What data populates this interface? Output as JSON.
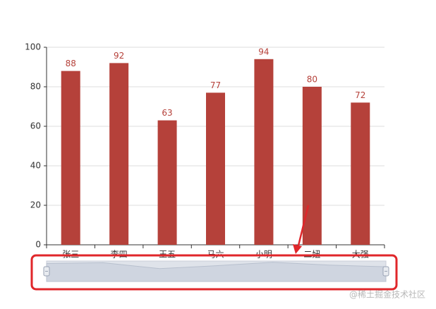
{
  "chart_data": {
    "type": "bar",
    "categories": [
      "张三",
      "李四",
      "王五",
      "马六",
      "小明",
      "二妞",
      "大强"
    ],
    "values": [
      88,
      92,
      63,
      77,
      94,
      80,
      72
    ],
    "color": "#b5413a",
    "ylim": [
      0,
      100
    ],
    "yticks": [
      0,
      20,
      40,
      60,
      80,
      100
    ],
    "grid": true,
    "data_zoom": true
  },
  "watermark": "@稀土掘金技术社区"
}
